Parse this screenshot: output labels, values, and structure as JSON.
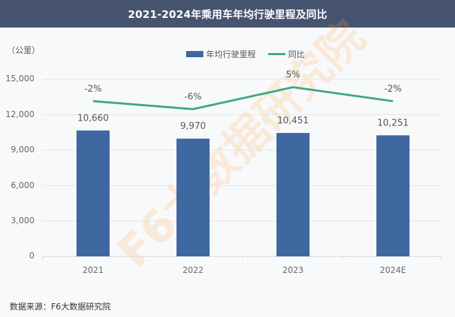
{
  "header": {
    "title": "2021-2024年乘用车年均行驶里程及同比"
  },
  "axis": {
    "unit_label": "（公里）",
    "y_ticks": [
      "15,000",
      "12,000",
      "9,000",
      "6,000",
      "3,000",
      "0"
    ]
  },
  "legend": {
    "bar_label": "年均行驶里程",
    "line_label": "同比"
  },
  "colors": {
    "bar": "#3f67a0",
    "line": "#3fa784",
    "title_bg": "#475470"
  },
  "footer": {
    "source": "数据来源：F6大数据研究院"
  },
  "watermark": {
    "text": "F6大数据研究院"
  },
  "chart_data": {
    "type": "bar",
    "title": "2021-2024年乘用车年均行驶里程及同比",
    "xlabel": "",
    "ylabel": "（公里）",
    "ylim": [
      0,
      15000
    ],
    "grid": true,
    "legend_position": "top",
    "categories": [
      "2021",
      "2022",
      "2023",
      "2024E"
    ],
    "series": [
      {
        "name": "年均行驶里程",
        "type": "bar",
        "values": [
          10660,
          9970,
          10451,
          10251
        ],
        "labels": [
          "10,660",
          "9,970",
          "10,451",
          "10,251"
        ]
      },
      {
        "name": "同比",
        "type": "line",
        "values": [
          -2,
          -6,
          5,
          -2
        ],
        "labels": [
          "-2%",
          "-6%",
          "5%",
          "-2%"
        ],
        "unit": "%"
      }
    ]
  }
}
